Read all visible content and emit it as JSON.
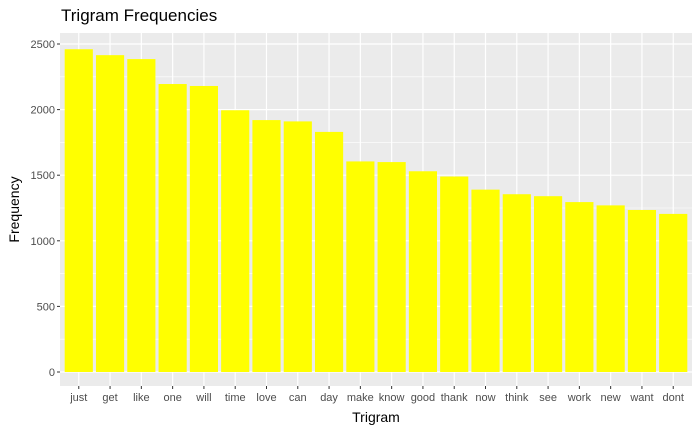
{
  "chart_data": {
    "type": "bar",
    "title": "Trigram Frequencies",
    "xlabel": "Trigram",
    "ylabel": "Frequency",
    "categories": [
      "just",
      "get",
      "like",
      "one",
      "will",
      "time",
      "love",
      "can",
      "day",
      "make",
      "know",
      "good",
      "thank",
      "now",
      "think",
      "see",
      "work",
      "new",
      "want",
      "dont"
    ],
    "values": [
      2460,
      2415,
      2385,
      2195,
      2180,
      1995,
      1920,
      1910,
      1830,
      1605,
      1600,
      1530,
      1490,
      1390,
      1355,
      1340,
      1295,
      1270,
      1235,
      1205
    ],
    "ylim": [
      0,
      2600
    ],
    "yticks": [
      0,
      500,
      1000,
      1500,
      2000,
      2500
    ],
    "bar_color": "#ffff00",
    "panel_background": "#ebebeb",
    "grid": true,
    "legend": "none"
  }
}
